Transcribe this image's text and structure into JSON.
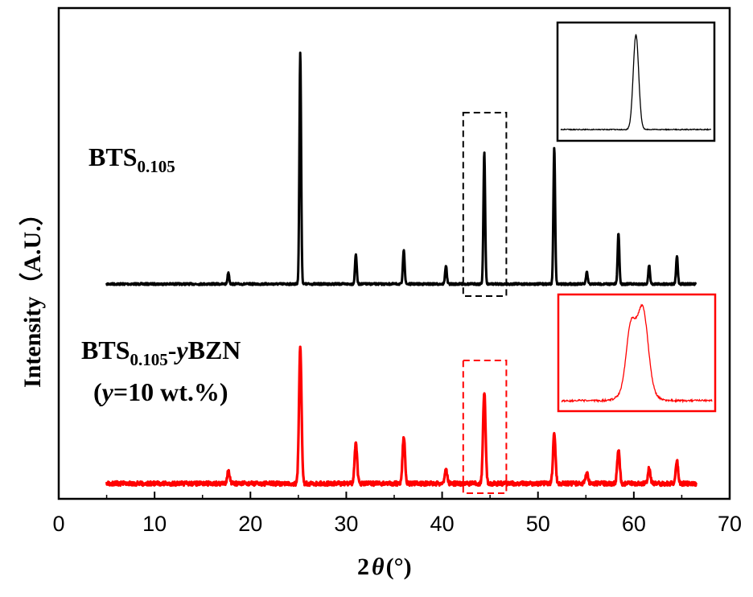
{
  "chart_data": {
    "type": "line",
    "title": "",
    "xlabel_prefix": "2",
    "xlabel_symbol": "θ",
    "xlabel_unit": "(°)",
    "ylabel": "Intensity（A.U.）",
    "xlim": [
      0,
      70
    ],
    "xticks": [
      "0",
      "10",
      "20",
      "30",
      "40",
      "50",
      "60",
      "70"
    ],
    "grid": false,
    "series": [
      {
        "name": "BTS0.105",
        "label_main": "BTS",
        "label_sub": "0.105",
        "color": "#000000",
        "x_range": [
          5,
          66.5
        ],
        "peaks": [
          {
            "x": 17.7,
            "h": 0.05,
            "w": 0.09
          },
          {
            "x": 25.2,
            "h": 1.0,
            "w": 0.09
          },
          {
            "x": 31.0,
            "h": 0.13,
            "w": 0.09
          },
          {
            "x": 36.0,
            "h": 0.15,
            "w": 0.09
          },
          {
            "x": 40.4,
            "h": 0.08,
            "w": 0.09
          },
          {
            "x": 44.4,
            "h": 0.57,
            "w": 0.09
          },
          {
            "x": 51.7,
            "h": 0.59,
            "w": 0.09
          },
          {
            "x": 55.1,
            "h": 0.05,
            "w": 0.09
          },
          {
            "x": 58.4,
            "h": 0.22,
            "w": 0.09
          },
          {
            "x": 61.6,
            "h": 0.08,
            "w": 0.09
          },
          {
            "x": 64.5,
            "h": 0.12,
            "w": 0.09
          }
        ]
      },
      {
        "name": "BTS0.105-yBZN (y=10 wt.%)",
        "label_main": "BTS",
        "label_sub": "0.105",
        "label_suffix_dash": "-",
        "label_suffix_y": "y",
        "label_suffix_rest": "BZN",
        "label_line2_open": "(",
        "label_line2_y": "y",
        "label_line2_rest": "=10 wt.%)",
        "color": "#ff0000",
        "x_range": [
          5,
          66.5
        ],
        "peaks": [
          {
            "x": 17.7,
            "h": 0.09,
            "w": 0.13
          },
          {
            "x": 25.2,
            "h": 1.0,
            "w": 0.13
          },
          {
            "x": 31.0,
            "h": 0.3,
            "w": 0.13
          },
          {
            "x": 36.0,
            "h": 0.34,
            "w": 0.13
          },
          {
            "x": 40.4,
            "h": 0.1,
            "w": 0.13
          },
          {
            "x": 44.4,
            "h": 0.66,
            "w": 0.13
          },
          {
            "x": 51.7,
            "h": 0.36,
            "w": 0.13
          },
          {
            "x": 55.1,
            "h": 0.08,
            "w": 0.13
          },
          {
            "x": 58.4,
            "h": 0.25,
            "w": 0.13
          },
          {
            "x": 61.6,
            "h": 0.11,
            "w": 0.13
          },
          {
            "x": 64.5,
            "h": 0.16,
            "w": 0.13
          }
        ]
      }
    ],
    "zoom_region": [
      42.2,
      46.7
    ],
    "insets": [
      {
        "name": "BTS0.105 (200) peak",
        "color": "#000000",
        "shape": "single"
      },
      {
        "name": "BTS0.105-yBZN (200) peak",
        "color": "#ff0000",
        "shape": "split"
      }
    ]
  }
}
